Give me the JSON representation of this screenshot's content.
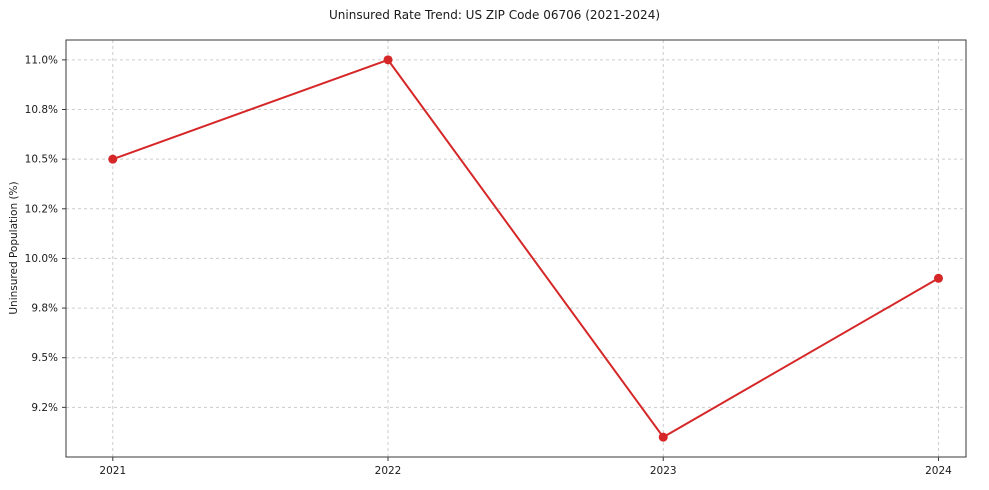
{
  "chart_data": {
    "type": "line",
    "title": "Uninsured Rate Trend: US ZIP Code 06706 (2021-2024)",
    "xlabel": "",
    "ylabel": "Uninsured Population (%)",
    "x": [
      2021,
      2022,
      2023,
      2024
    ],
    "values": [
      10.5,
      11.0,
      9.1,
      9.9
    ],
    "xlim": [
      2020.83,
      2024.1
    ],
    "ylim": [
      9.0,
      11.1
    ],
    "xticks": [
      {
        "value": 2021,
        "label": "2021"
      },
      {
        "value": 2022,
        "label": "2022"
      },
      {
        "value": 2023,
        "label": "2023"
      },
      {
        "value": 2024,
        "label": "2024"
      }
    ],
    "yticks": [
      {
        "value": 9.25,
        "label": "9.2%"
      },
      {
        "value": 9.5,
        "label": "9.5%"
      },
      {
        "value": 9.75,
        "label": "9.8%"
      },
      {
        "value": 10.0,
        "label": "10.0%"
      },
      {
        "value": 10.25,
        "label": "10.2%"
      },
      {
        "value": 10.5,
        "label": "10.5%"
      },
      {
        "value": 10.75,
        "label": "10.8%"
      },
      {
        "value": 11.0,
        "label": "11.0%"
      }
    ],
    "grid": true,
    "legend": "none",
    "line_color": "#d62728",
    "marker": "circle",
    "grid_color": "#cccccc",
    "background": "#ffffff"
  }
}
